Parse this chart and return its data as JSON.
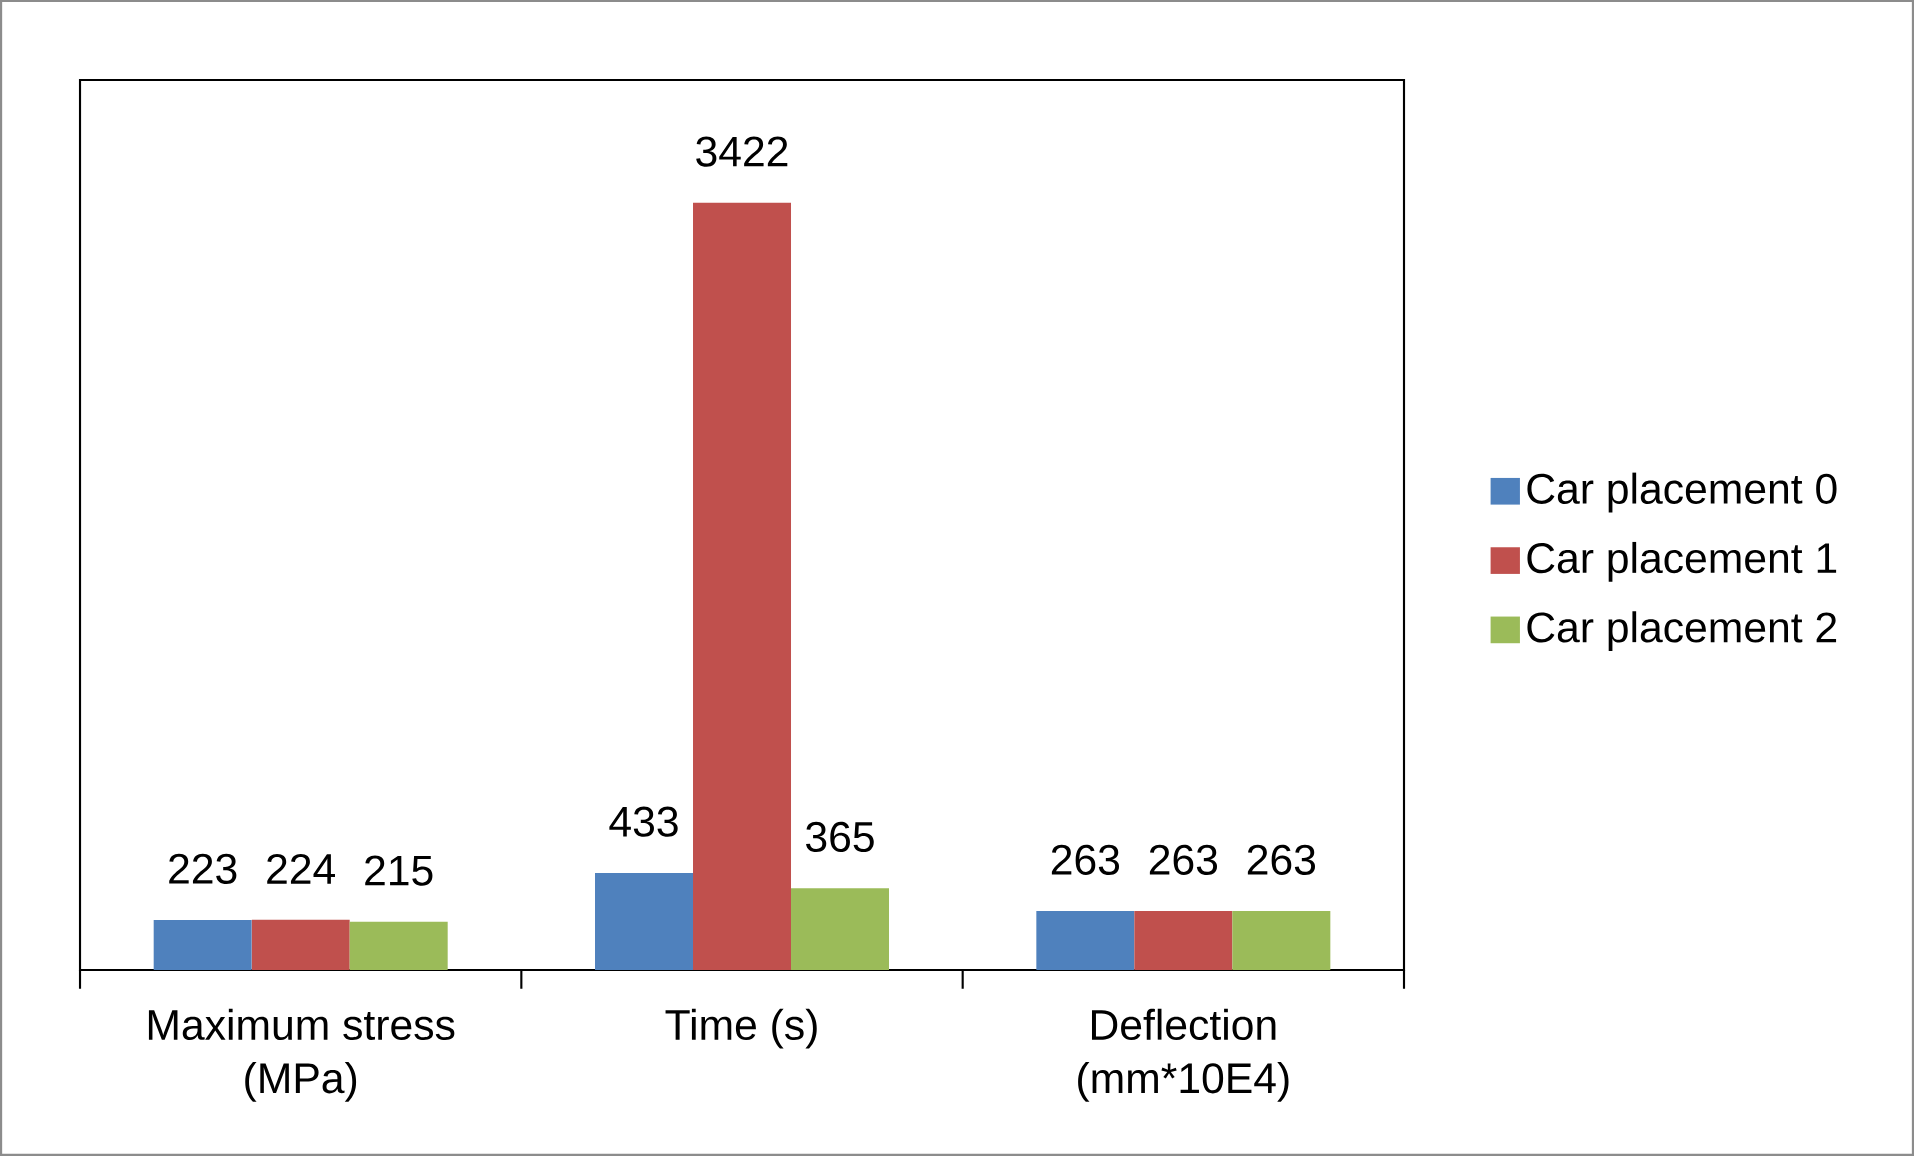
{
  "chart_data": {
    "type": "bar",
    "categories": [
      "Maximum stress (MPa)",
      "Time (s)",
      "Deflection (mm*10E4)"
    ],
    "series": [
      {
        "name": "Car placement 0",
        "color": "#4f81bd",
        "values": [
          223,
          433,
          263
        ]
      },
      {
        "name": "Car placement 1",
        "color": "#c0504d",
        "values": [
          224,
          3422,
          263
        ]
      },
      {
        "name": "Car placement 2",
        "color": "#9bbb59",
        "values": [
          215,
          365,
          263
        ]
      }
    ],
    "data_labels": true,
    "legend": "right"
  }
}
